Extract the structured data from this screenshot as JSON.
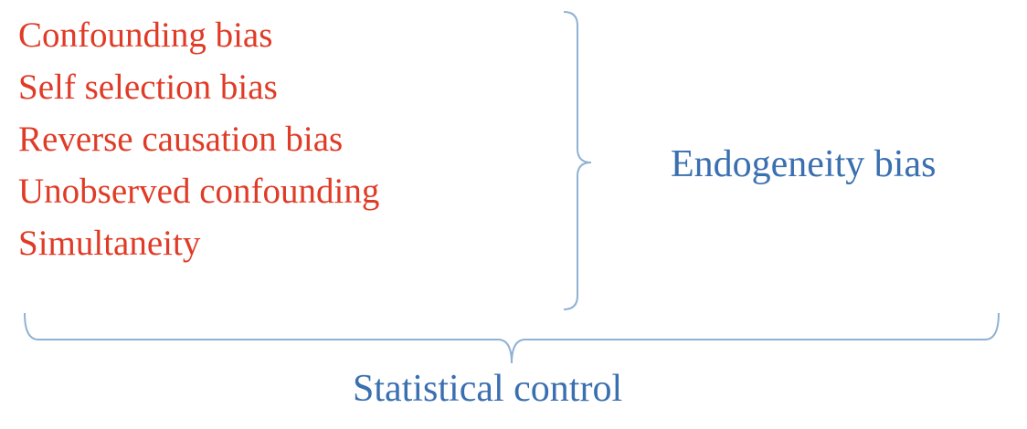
{
  "biases": [
    "Confounding bias",
    "Self selection bias",
    "Reverse causation bias",
    "Unobserved confounding",
    "Simultaneity"
  ],
  "endogeneity_label": "Endogeneity bias",
  "statistical_control_label": "Statistical control",
  "colors": {
    "bias_text": "#e03b26",
    "label_text": "#3a6fb0",
    "bracket": "#8fb1d4"
  }
}
